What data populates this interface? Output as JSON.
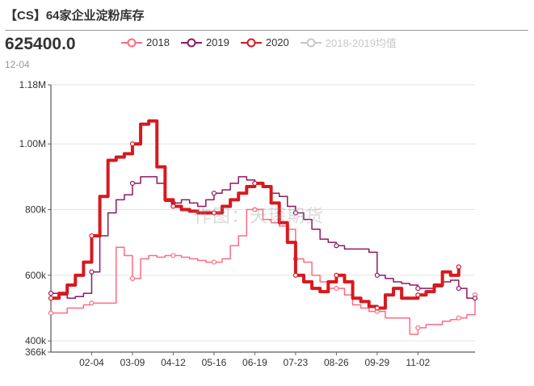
{
  "header": {
    "title": "【CS】64家企业淀粉库存",
    "current_value": "625400.0",
    "current_date": "12-04"
  },
  "watermark": "作图：天琛期货",
  "chart_data": {
    "type": "line",
    "xlabel": "",
    "ylabel": "",
    "ylim": [
      366000,
      1180000
    ],
    "xlim": [
      0,
      52
    ],
    "grid": "horizontal",
    "legend_position": "top",
    "y_ticks": [
      {
        "value": 366000,
        "label": "366k"
      },
      {
        "value": 400000,
        "label": "400k"
      },
      {
        "value": 600000,
        "label": "600k"
      },
      {
        "value": 800000,
        "label": "800k"
      },
      {
        "value": 1000000,
        "label": "1.00M"
      },
      {
        "value": 1180000,
        "label": "1.18M"
      }
    ],
    "x_ticks": [
      {
        "pos": 5,
        "label": "02-04"
      },
      {
        "pos": 10,
        "label": "03-09"
      },
      {
        "pos": 15,
        "label": "04-12"
      },
      {
        "pos": 20,
        "label": "05-16"
      },
      {
        "pos": 25,
        "label": "06-19"
      },
      {
        "pos": 30,
        "label": "07-23"
      },
      {
        "pos": 35,
        "label": "08-26"
      },
      {
        "pos": 40,
        "label": "09-29"
      },
      {
        "pos": 45,
        "label": "11-02"
      }
    ],
    "series": [
      {
        "name": "2018",
        "color": "#ff6b81",
        "width": 1.5,
        "visible": true,
        "values": [
          485000,
          485000,
          500000,
          500000,
          510000,
          515000,
          515000,
          515000,
          685000,
          660000,
          590000,
          650000,
          660000,
          655000,
          660000,
          660000,
          655000,
          650000,
          645000,
          640000,
          640000,
          650000,
          690000,
          720000,
          800000,
          800000,
          770000,
          760000,
          750000,
          740000,
          650000,
          640000,
          600000,
          580000,
          560000,
          560000,
          540000,
          510000,
          500000,
          490000,
          490000,
          470000,
          470000,
          470000,
          420000,
          440000,
          450000,
          450000,
          460000,
          465000,
          470000,
          480000,
          540000
        ]
      },
      {
        "name": "2019",
        "color": "#8b1a64",
        "width": 1.5,
        "visible": true,
        "values": [
          545000,
          540000,
          530000,
          535000,
          545000,
          610000,
          720000,
          790000,
          830000,
          845000,
          880000,
          900000,
          900000,
          880000,
          825000,
          820000,
          830000,
          820000,
          810000,
          830000,
          850000,
          860000,
          880000,
          900000,
          890000,
          880000,
          870000,
          850000,
          840000,
          810000,
          790000,
          770000,
          740000,
          710000,
          700000,
          690000,
          680000,
          680000,
          680000,
          670000,
          600000,
          590000,
          580000,
          575000,
          570000,
          560000,
          560000,
          565000,
          580000,
          585000,
          560000,
          530000,
          530000
        ]
      },
      {
        "name": "2020",
        "color": "#d7191f",
        "width": 4,
        "visible": true,
        "values": [
          530000,
          545000,
          570000,
          600000,
          640000,
          720000,
          840000,
          950000,
          960000,
          970000,
          1000000,
          1060000,
          1070000,
          930000,
          830000,
          810000,
          800000,
          795000,
          790000,
          790000,
          790000,
          810000,
          830000,
          850000,
          870000,
          880000,
          870000,
          820000,
          760000,
          700000,
          600000,
          580000,
          560000,
          550000,
          580000,
          600000,
          580000,
          530000,
          520000,
          505000,
          500000,
          540000,
          560000,
          530000,
          530000,
          540000,
          550000,
          570000,
          610000,
          600000,
          625400
        ]
      },
      {
        "name": "2018-2019均值",
        "color": "#c8c8c8",
        "width": 1.5,
        "visible": false,
        "values": []
      }
    ]
  }
}
